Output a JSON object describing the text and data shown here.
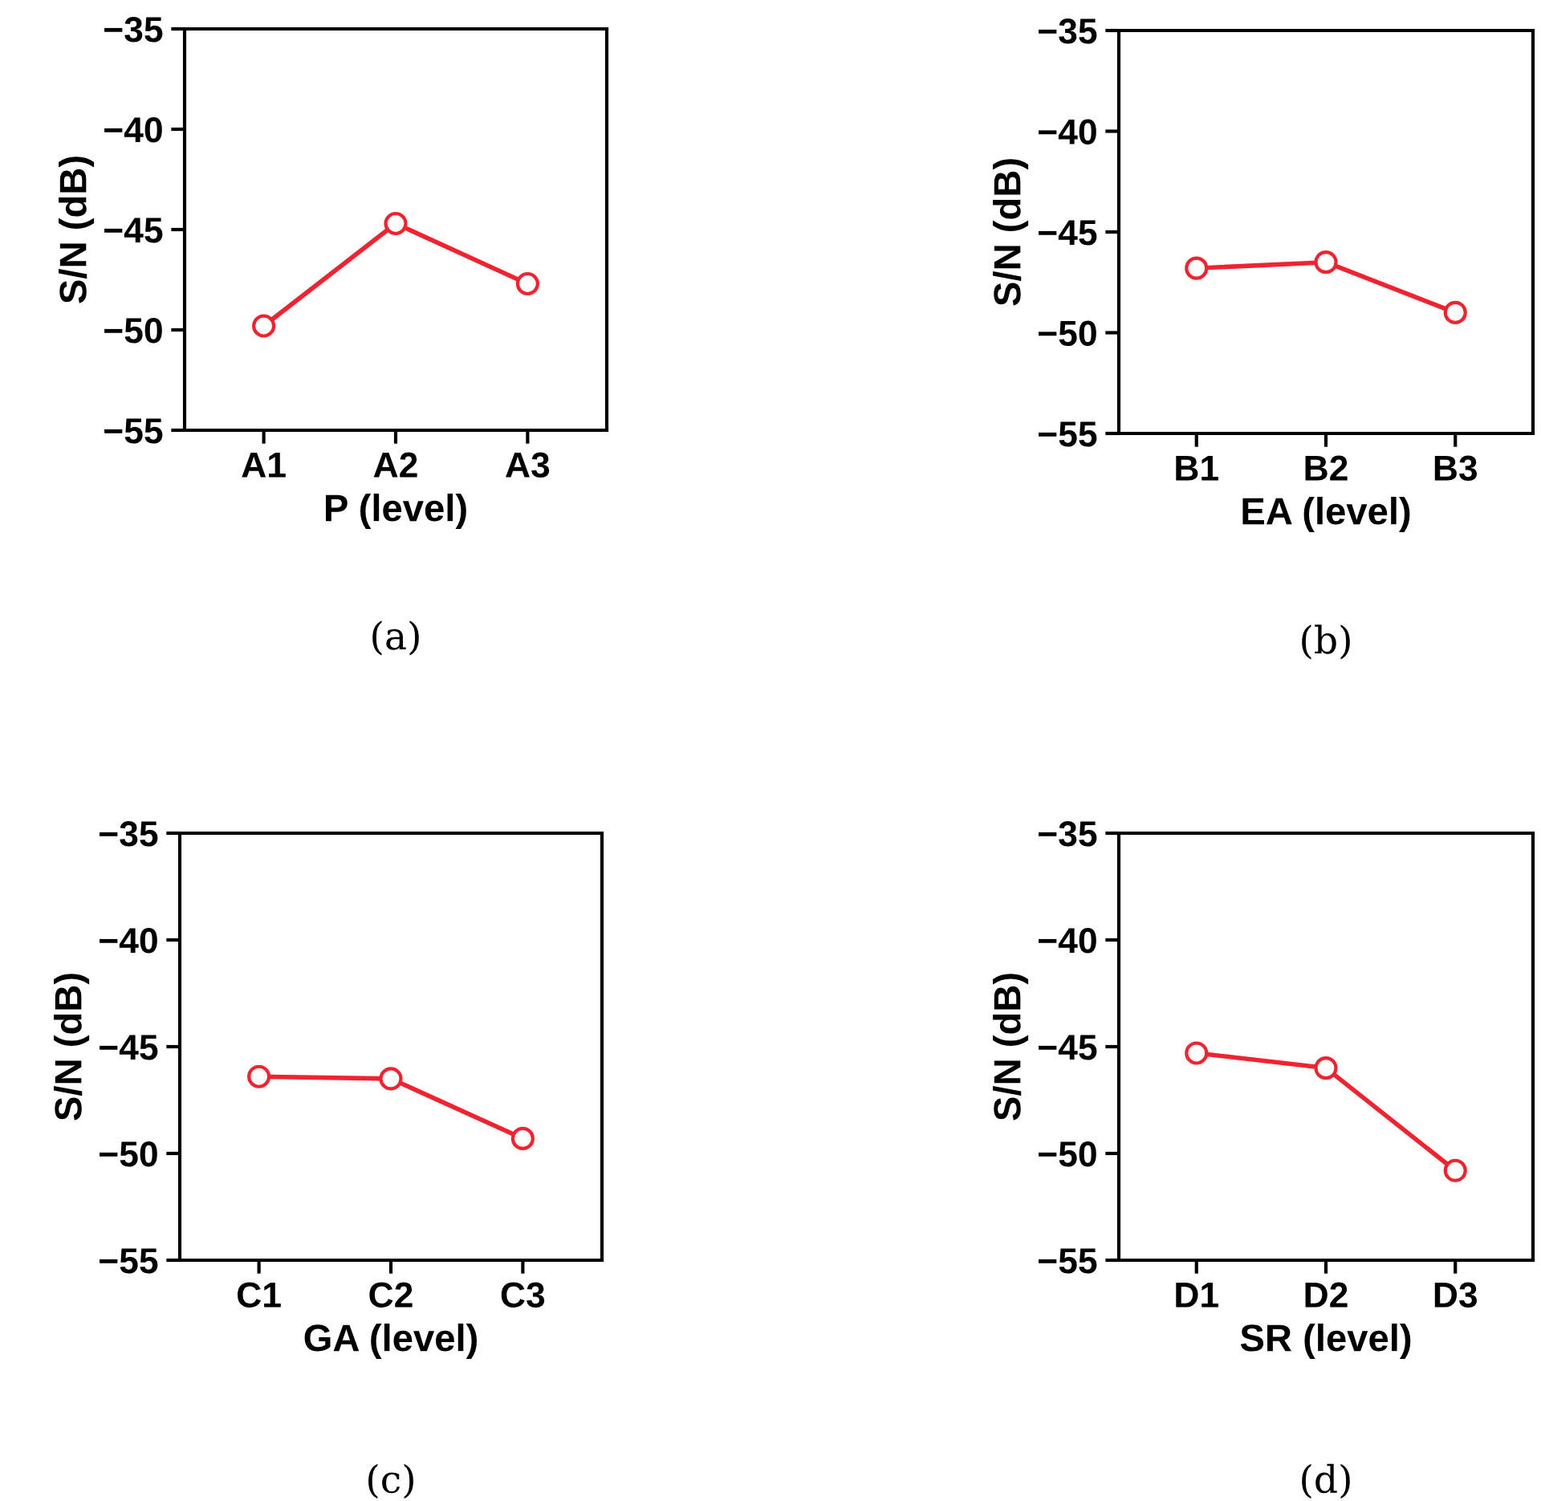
{
  "chart_data": [
    {
      "type": "line",
      "categories": [
        "A1",
        "A2",
        "A3"
      ],
      "xlabel": "P (level)",
      "ylabel": "S/N (dB)",
      "series": [
        {
          "color": "#f02430",
          "values": [
            -49.8,
            -44.7,
            -47.7
          ]
        }
      ],
      "ylim": [
        -55,
        -35
      ],
      "yticks": [
        {
          "value": -55,
          "label": "−55"
        },
        {
          "value": -50,
          "label": "−50"
        },
        {
          "value": -45,
          "label": "−45"
        },
        {
          "value": -40,
          "label": "−40"
        },
        {
          "value": -35,
          "label": "−35"
        }
      ],
      "marker": "circle",
      "line_style": "solid",
      "grid": false,
      "legend": false,
      "annotations": [
        "(a)"
      ]
    },
    {
      "type": "line",
      "categories": [
        "B1",
        "B2",
        "B3"
      ],
      "xlabel": "EA (level)",
      "ylabel": "S/N (dB)",
      "series": [
        {
          "color": "#f02430",
          "values": [
            -46.8,
            -46.5,
            -49.0
          ]
        }
      ],
      "ylim": [
        -55,
        -35
      ],
      "yticks": [
        {
          "value": -55,
          "label": "−55"
        },
        {
          "value": -50,
          "label": "−50"
        },
        {
          "value": -45,
          "label": "−45"
        },
        {
          "value": -40,
          "label": "−40"
        },
        {
          "value": -35,
          "label": "−35"
        }
      ],
      "marker": "circle",
      "line_style": "solid",
      "grid": false,
      "legend": false,
      "annotations": [
        "(b)"
      ]
    },
    {
      "type": "line",
      "categories": [
        "C1",
        "C2",
        "C3"
      ],
      "xlabel": "GA (level)",
      "ylabel": "S/N (dB)",
      "series": [
        {
          "color": "#f02430",
          "values": [
            -46.4,
            -46.5,
            -49.3
          ]
        }
      ],
      "ylim": [
        -55,
        -35
      ],
      "yticks": [
        {
          "value": -55,
          "label": "−55"
        },
        {
          "value": -50,
          "label": "−50"
        },
        {
          "value": -45,
          "label": "−45"
        },
        {
          "value": -40,
          "label": "−40"
        },
        {
          "value": -35,
          "label": "−35"
        }
      ],
      "marker": "circle",
      "line_style": "solid",
      "grid": false,
      "legend": false,
      "annotations": [
        "(c)"
      ]
    },
    {
      "type": "line",
      "categories": [
        "D1",
        "D2",
        "D3"
      ],
      "xlabel": "SR (level)",
      "ylabel": "S/N (dB)",
      "series": [
        {
          "color": "#f02430",
          "values": [
            -45.3,
            -46.0,
            -50.8
          ]
        }
      ],
      "ylim": [
        -55,
        -35
      ],
      "yticks": [
        {
          "value": -55,
          "label": "−55"
        },
        {
          "value": -50,
          "label": "−50"
        },
        {
          "value": -45,
          "label": "−45"
        },
        {
          "value": -40,
          "label": "−40"
        },
        {
          "value": -35,
          "label": "−35"
        }
      ],
      "marker": "circle",
      "line_style": "solid",
      "grid": false,
      "legend": false,
      "annotations": [
        "(d)"
      ]
    }
  ]
}
